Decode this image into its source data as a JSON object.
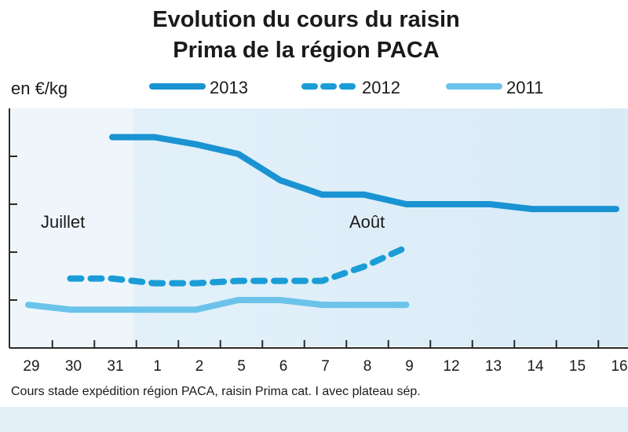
{
  "chart_data": {
    "type": "line",
    "title": [
      "Evolution du cours du raisin",
      "Prima de la région PACA"
    ],
    "ylabel": "en €/kg",
    "categories": [
      "29",
      "30",
      "31",
      "1",
      "2",
      "5",
      "6",
      "7",
      "8",
      "9",
      "12",
      "13",
      "14",
      "15",
      "16"
    ],
    "annotations": {
      "left_month": "Juillet",
      "right_month": "Août"
    },
    "ylim": [
      0,
      5
    ],
    "series": [
      {
        "name": "2013",
        "style": "solid",
        "color": "#1a93d2",
        "values": [
          null,
          null,
          4.4,
          4.4,
          4.25,
          4.05,
          3.5,
          3.2,
          3.2,
          3.0,
          3.0,
          3.0,
          2.9,
          2.9,
          2.9
        ]
      },
      {
        "name": "2012",
        "style": "dashed",
        "color": "#1a9dd6",
        "values": [
          null,
          1.45,
          1.45,
          1.35,
          1.35,
          1.4,
          1.4,
          1.4,
          1.7,
          2.1,
          null,
          null,
          null,
          null,
          null
        ]
      },
      {
        "name": "2011",
        "style": "solid-light",
        "color": "#6bc3ea",
        "values": [
          0.9,
          0.8,
          0.8,
          0.8,
          0.8,
          1.0,
          1.0,
          0.9,
          0.9,
          0.9,
          null,
          null,
          null,
          null,
          null
        ]
      }
    ],
    "grid": false,
    "legend_position": "top",
    "source": "Cours stade expédition région PACA, raisin Prima cat. I avec plateau sép."
  }
}
